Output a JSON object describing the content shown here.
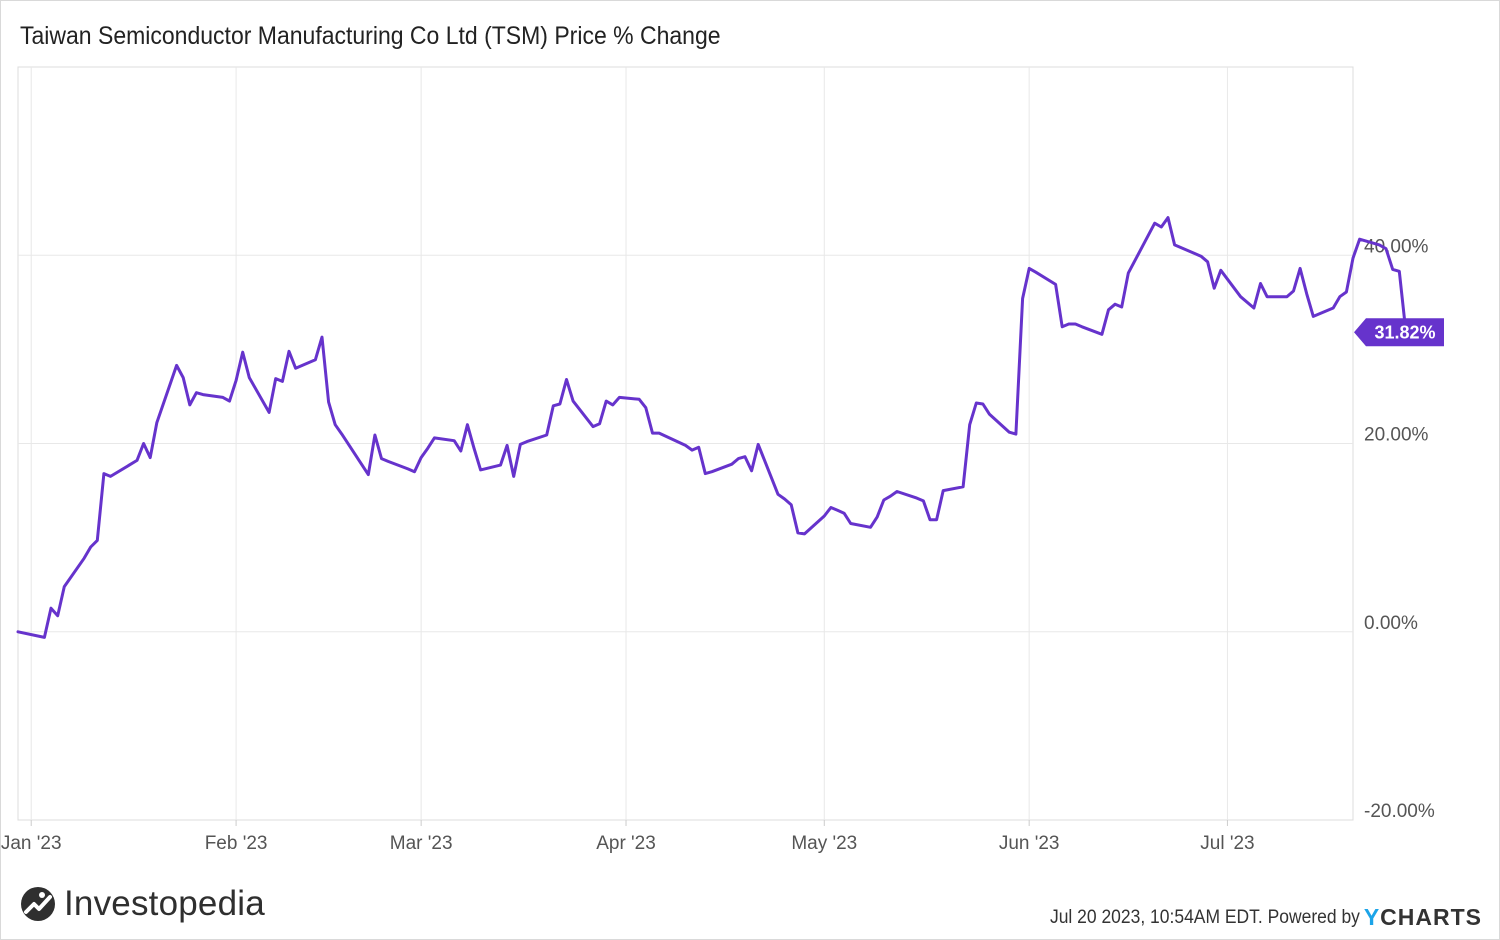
{
  "chart_data": {
    "type": "line",
    "title": "Taiwan Semiconductor Manufacturing Co Ltd (TSM) Price % Change",
    "xlabel": "",
    "ylabel": "",
    "x_range": [
      "2022-12-30",
      "2023-07-20"
    ],
    "ylim": [
      -20,
      60
    ],
    "y_ticks": [
      -20,
      0,
      20,
      40
    ],
    "y_tick_labels": [
      "-20.00%",
      "0.00%",
      "20.00%",
      "40.00%"
    ],
    "x_ticks": [
      "2023-01-01",
      "2023-02-01",
      "2023-03-01",
      "2023-04-01",
      "2023-05-01",
      "2023-06-01",
      "2023-07-01"
    ],
    "x_tick_labels": [
      "Jan '23",
      "Feb '23",
      "Mar '23",
      "Apr '23",
      "May '23",
      "Jun '23",
      "Jul '23"
    ],
    "grid": true,
    "line_color": "#6633cc",
    "end_label": "31.82%",
    "series": [
      {
        "name": "",
        "values": [
          [
            "2022-12-30",
            0.0
          ],
          [
            "2023-01-03",
            -0.6
          ],
          [
            "2023-01-04",
            2.5
          ],
          [
            "2023-01-05",
            1.7
          ],
          [
            "2023-01-06",
            4.8
          ],
          [
            "2023-01-09",
            7.8
          ],
          [
            "2023-01-10",
            9.0
          ],
          [
            "2023-01-11",
            9.7
          ],
          [
            "2023-01-12",
            16.8
          ],
          [
            "2023-01-13",
            16.5
          ],
          [
            "2023-01-17",
            18.2
          ],
          [
            "2023-01-18",
            20.0
          ],
          [
            "2023-01-19",
            18.5
          ],
          [
            "2023-01-20",
            22.2
          ],
          [
            "2023-01-23",
            28.3
          ],
          [
            "2023-01-24",
            27.0
          ],
          [
            "2023-01-25",
            24.1
          ],
          [
            "2023-01-26",
            25.4
          ],
          [
            "2023-01-27",
            25.2
          ],
          [
            "2023-01-30",
            24.9
          ],
          [
            "2023-01-31",
            24.5
          ],
          [
            "2023-02-01",
            26.7
          ],
          [
            "2023-02-02",
            29.7
          ],
          [
            "2023-02-03",
            27.0
          ],
          [
            "2023-02-06",
            23.3
          ],
          [
            "2023-02-07",
            26.9
          ],
          [
            "2023-02-08",
            26.6
          ],
          [
            "2023-02-09",
            29.8
          ],
          [
            "2023-02-10",
            28.0
          ],
          [
            "2023-02-13",
            28.9
          ],
          [
            "2023-02-14",
            31.3
          ],
          [
            "2023-02-15",
            24.4
          ],
          [
            "2023-02-16",
            22.0
          ],
          [
            "2023-02-17",
            21.0
          ],
          [
            "2023-02-21",
            16.7
          ],
          [
            "2023-02-22",
            20.9
          ],
          [
            "2023-02-23",
            18.4
          ],
          [
            "2023-02-24",
            18.1
          ],
          [
            "2023-02-27",
            17.3
          ],
          [
            "2023-02-28",
            17.0
          ],
          [
            "2023-03-01",
            18.5
          ],
          [
            "2023-03-02",
            19.5
          ],
          [
            "2023-03-03",
            20.6
          ],
          [
            "2023-03-06",
            20.3
          ],
          [
            "2023-03-07",
            19.2
          ],
          [
            "2023-03-08",
            22.0
          ],
          [
            "2023-03-09",
            19.5
          ],
          [
            "2023-03-10",
            17.2
          ],
          [
            "2023-03-13",
            17.7
          ],
          [
            "2023-03-14",
            19.8
          ],
          [
            "2023-03-15",
            16.5
          ],
          [
            "2023-03-16",
            19.9
          ],
          [
            "2023-03-17",
            20.2
          ],
          [
            "2023-03-20",
            20.9
          ],
          [
            "2023-03-21",
            24.0
          ],
          [
            "2023-03-22",
            24.2
          ],
          [
            "2023-03-23",
            26.8
          ],
          [
            "2023-03-24",
            24.5
          ],
          [
            "2023-03-27",
            21.8
          ],
          [
            "2023-03-28",
            22.1
          ],
          [
            "2023-03-29",
            24.5
          ],
          [
            "2023-03-30",
            24.1
          ],
          [
            "2023-03-31",
            24.9
          ],
          [
            "2023-04-03",
            24.7
          ],
          [
            "2023-04-04",
            23.8
          ],
          [
            "2023-04-05",
            21.1
          ],
          [
            "2023-04-06",
            21.1
          ],
          [
            "2023-04-10",
            19.8
          ],
          [
            "2023-04-11",
            19.3
          ],
          [
            "2023-04-12",
            19.6
          ],
          [
            "2023-04-13",
            16.8
          ],
          [
            "2023-04-14",
            17.0
          ],
          [
            "2023-04-17",
            17.8
          ],
          [
            "2023-04-18",
            18.4
          ],
          [
            "2023-04-19",
            18.6
          ],
          [
            "2023-04-20",
            17.1
          ],
          [
            "2023-04-21",
            19.9
          ],
          [
            "2023-04-24",
            14.6
          ],
          [
            "2023-04-25",
            14.1
          ],
          [
            "2023-04-26",
            13.5
          ],
          [
            "2023-04-27",
            10.5
          ],
          [
            "2023-04-28",
            10.4
          ],
          [
            "2023-05-01",
            12.3
          ],
          [
            "2023-05-02",
            13.2
          ],
          [
            "2023-05-03",
            12.9
          ],
          [
            "2023-05-04",
            12.6
          ],
          [
            "2023-05-05",
            11.5
          ],
          [
            "2023-05-08",
            11.1
          ],
          [
            "2023-05-09",
            12.2
          ],
          [
            "2023-05-10",
            14.0
          ],
          [
            "2023-05-11",
            14.4
          ],
          [
            "2023-05-12",
            14.9
          ],
          [
            "2023-05-15",
            14.2
          ],
          [
            "2023-05-16",
            13.9
          ],
          [
            "2023-05-17",
            11.9
          ],
          [
            "2023-05-18",
            11.9
          ],
          [
            "2023-05-19",
            15.0
          ],
          [
            "2023-05-22",
            15.4
          ],
          [
            "2023-05-23",
            22.0
          ],
          [
            "2023-05-24",
            24.3
          ],
          [
            "2023-05-25",
            24.2
          ],
          [
            "2023-05-26",
            23.1
          ],
          [
            "2023-05-29",
            21.2
          ],
          [
            "2023-05-30",
            21.0
          ],
          [
            "2023-05-31",
            35.4
          ],
          [
            "2023-06-01",
            38.6
          ],
          [
            "2023-06-02",
            38.2
          ],
          [
            "2023-06-05",
            36.9
          ],
          [
            "2023-06-06",
            32.4
          ],
          [
            "2023-06-07",
            32.7
          ],
          [
            "2023-06-08",
            32.7
          ],
          [
            "2023-06-09",
            32.4
          ],
          [
            "2023-06-12",
            31.6
          ],
          [
            "2023-06-13",
            34.2
          ],
          [
            "2023-06-14",
            34.8
          ],
          [
            "2023-06-15",
            34.5
          ],
          [
            "2023-06-16",
            38.1
          ],
          [
            "2023-06-20",
            43.4
          ],
          [
            "2023-06-21",
            43.0
          ],
          [
            "2023-06-22",
            44.0
          ],
          [
            "2023-06-23",
            41.1
          ],
          [
            "2023-06-26",
            40.2
          ],
          [
            "2023-06-27",
            39.9
          ],
          [
            "2023-06-28",
            39.3
          ],
          [
            "2023-06-29",
            36.5
          ],
          [
            "2023-06-30",
            38.4
          ],
          [
            "2023-07-03",
            35.6
          ],
          [
            "2023-07-05",
            34.4
          ],
          [
            "2023-07-06",
            37.0
          ],
          [
            "2023-07-07",
            35.6
          ],
          [
            "2023-07-10",
            35.6
          ],
          [
            "2023-07-11",
            36.2
          ],
          [
            "2023-07-12",
            38.6
          ],
          [
            "2023-07-13",
            35.9
          ],
          [
            "2023-07-14",
            33.5
          ],
          [
            "2023-07-17",
            34.4
          ],
          [
            "2023-07-18",
            35.6
          ],
          [
            "2023-07-19",
            36.1
          ],
          [
            "2023-07-20",
            39.7
          ],
          [
            "2023-07-21",
            41.7
          ],
          [
            "2023-07-24",
            41.1
          ],
          [
            "2023-07-25",
            40.7
          ],
          [
            "2023-07-26",
            38.5
          ],
          [
            "2023-07-27",
            38.3
          ],
          [
            "2023-07-28",
            31.82
          ]
        ]
      }
    ]
  },
  "brand": {
    "name": "Investopedia"
  },
  "footer": {
    "note": "Jul 20 2023, 10:54AM EDT. Powered by",
    "logo_y": "Y",
    "logo_rest": "CHARTS"
  },
  "colors": {
    "line": "#6633cc",
    "label_bg": "#6633cc",
    "grid": "#e8e8e8",
    "axis_text": "#555555",
    "ycharts_accent": "#1ca4e8"
  }
}
